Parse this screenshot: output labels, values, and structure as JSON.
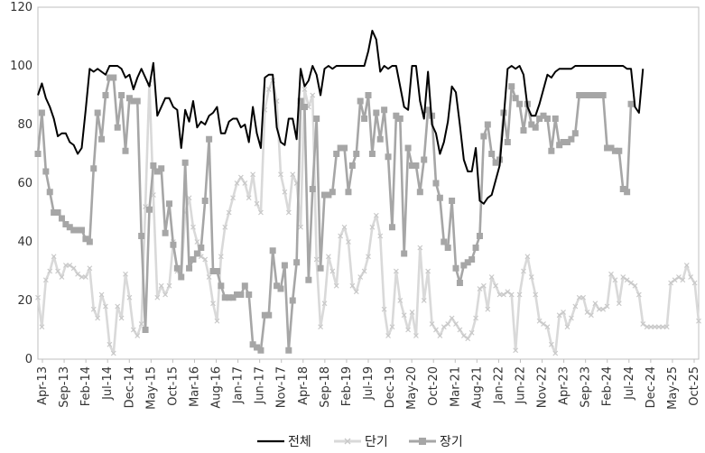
{
  "chart_data": {
    "type": "line",
    "title": "",
    "xlabel": "",
    "ylabel": "",
    "ylim": [
      0,
      120
    ],
    "yticks": [
      0,
      20,
      40,
      60,
      80,
      100,
      120
    ],
    "grid": false,
    "legend_position": "bottom",
    "x_tick_labels": [
      "Apr-13",
      "Sep-13",
      "Feb-14",
      "Jul-14",
      "Dec-14",
      "May-15",
      "Oct-15",
      "Mar-16",
      "Aug-16",
      "Jan-17",
      "Jun-17",
      "Nov-17",
      "Apr-18",
      "Sep-18",
      "Feb-19",
      "Jul-19",
      "Dec-19",
      "May-20",
      "Oct-20",
      "Mar-21",
      "Aug-21",
      "Jan-22",
      "Jun-22",
      "Nov-22",
      "Apr-23",
      "Sep-23",
      "Feb-24",
      "Jul-24",
      "Dec-24",
      "May-25",
      "Oct-25"
    ],
    "series": [
      {
        "name": "전체",
        "color": "#000000",
        "marker": "none",
        "values": [
          90,
          94,
          89,
          86,
          82,
          76,
          77,
          77,
          74,
          73,
          70,
          72,
          85,
          99,
          98,
          99,
          98,
          97,
          100,
          100,
          100,
          99,
          96,
          97,
          92,
          96,
          99,
          96,
          93,
          101,
          83,
          86,
          89,
          89,
          86,
          85,
          72,
          85,
          81,
          88,
          79,
          81,
          80,
          83,
          84,
          86,
          77,
          77,
          81,
          82,
          82,
          79,
          80,
          74,
          86,
          77,
          72,
          96,
          97,
          97,
          79,
          74,
          73,
          82,
          82,
          75,
          99,
          93,
          95,
          100,
          97,
          90,
          99,
          100,
          99,
          100,
          100,
          100,
          100,
          100,
          100,
          100,
          100,
          105,
          112,
          109,
          98,
          100,
          99,
          100,
          100,
          93,
          86,
          85,
          100,
          100,
          88,
          82,
          98,
          80,
          77,
          70,
          74,
          81,
          93,
          91,
          80,
          68,
          64,
          64,
          72,
          54,
          53,
          55,
          56,
          61,
          66,
          82,
          99,
          100,
          99,
          100,
          97,
          86,
          83,
          83,
          87,
          92,
          97,
          96,
          98,
          99,
          99,
          99,
          99,
          100,
          100,
          100,
          100,
          100,
          100,
          100,
          100,
          100,
          100,
          100,
          100,
          100,
          99,
          99,
          86,
          84,
          99
        ],
        "start_x": 0
      },
      {
        "name": "단기",
        "color": "#d9d9d9",
        "marker": "x",
        "values": [
          21,
          11,
          27,
          30,
          35,
          30,
          28,
          32,
          32,
          31,
          29,
          28,
          28,
          31,
          17,
          14,
          22,
          18,
          5,
          2,
          18,
          14,
          29,
          21,
          10,
          8,
          12,
          52,
          94,
          56,
          21,
          25,
          22,
          25,
          40,
          30,
          28,
          50,
          55,
          45,
          40,
          35,
          34,
          28,
          19,
          13,
          35,
          45,
          50,
          55,
          60,
          62,
          60,
          55,
          63,
          53,
          50,
          85,
          92,
          95,
          88,
          63,
          57,
          50,
          63,
          60,
          45,
          92,
          86,
          90,
          34,
          11,
          19,
          35,
          30,
          25,
          42,
          45,
          40,
          25,
          23,
          28,
          30,
          35,
          45,
          49,
          42,
          17,
          8,
          11,
          30,
          20,
          15,
          10,
          16,
          8,
          38,
          20,
          30,
          12,
          10,
          8,
          11,
          12,
          14,
          12,
          10,
          8,
          7,
          9,
          14,
          24,
          25,
          17,
          28,
          25,
          22,
          22,
          23,
          22,
          3,
          22,
          30,
          35,
          28,
          22,
          13,
          12,
          11,
          5,
          2,
          15,
          16,
          11,
          14,
          18,
          21,
          21,
          16,
          15,
          19,
          17,
          17,
          18,
          29,
          27,
          19,
          28,
          27,
          26,
          25,
          22,
          12,
          11,
          11,
          11,
          11,
          11,
          11,
          26,
          27,
          28,
          27,
          32,
          28,
          26,
          13
        ],
        "start_x": 0
      },
      {
        "name": "장기",
        "color": "#a6a6a6",
        "marker": "square",
        "values": [
          70,
          84,
          64,
          57,
          50,
          50,
          48,
          46,
          45,
          44,
          44,
          44,
          41,
          40,
          65,
          84,
          75,
          90,
          96,
          96,
          79,
          90,
          71,
          89,
          88,
          88,
          42,
          10,
          51,
          66,
          64,
          65,
          43,
          53,
          39,
          31,
          28,
          67,
          31,
          34,
          36,
          38,
          54,
          75,
          30,
          30,
          25,
          21,
          21,
          21,
          22,
          22,
          25,
          22,
          5,
          4,
          3,
          15,
          15,
          37,
          25,
          24,
          32,
          3,
          20,
          33,
          88,
          86,
          27,
          58,
          82,
          31,
          56,
          56,
          57,
          70,
          72,
          72,
          57,
          66,
          70,
          88,
          82,
          90,
          70,
          84,
          75,
          85,
          69,
          45,
          83,
          82,
          36,
          72,
          66,
          66,
          57,
          68,
          85,
          83,
          60,
          55,
          40,
          38,
          54,
          31,
          26,
          32,
          33,
          34,
          38,
          42,
          76,
          80,
          70,
          67,
          68,
          84,
          74,
          93,
          89,
          87,
          78,
          87,
          80,
          79,
          82,
          83,
          82,
          71,
          82,
          73,
          74,
          74,
          75,
          77,
          90,
          90,
          90,
          90,
          90,
          90,
          90,
          72,
          72,
          71,
          71,
          58,
          57,
          87
        ],
        "start_x": 0
      }
    ]
  }
}
